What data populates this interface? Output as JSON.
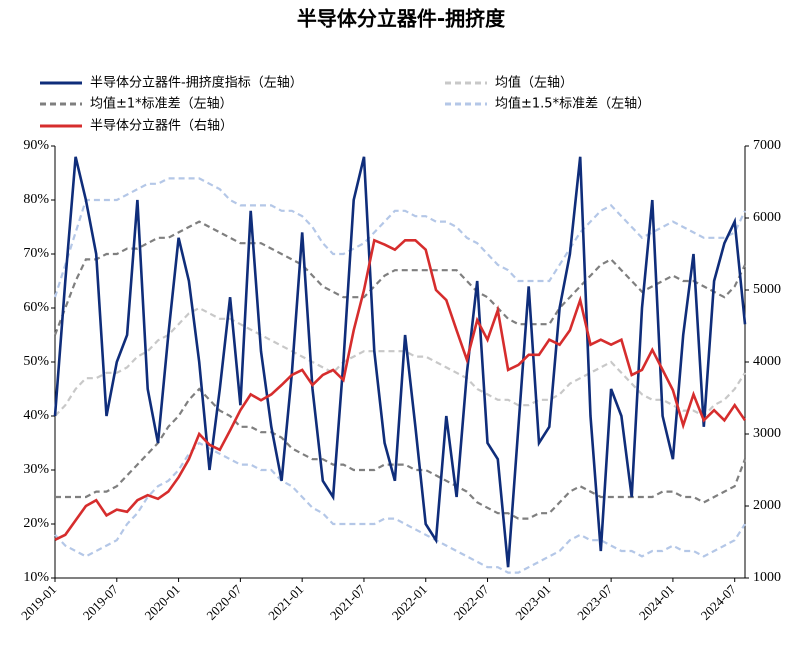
{
  "chart_data": {
    "type": "line",
    "title": "半导体分立器件-拥挤度",
    "x": [
      "2019-01",
      "2019-02",
      "2019-03",
      "2019-04",
      "2019-05",
      "2019-06",
      "2019-07",
      "2019-08",
      "2019-09",
      "2019-10",
      "2019-11",
      "2019-12",
      "2020-01",
      "2020-02",
      "2020-03",
      "2020-04",
      "2020-05",
      "2020-06",
      "2020-07",
      "2020-08",
      "2020-09",
      "2020-10",
      "2020-11",
      "2020-12",
      "2021-01",
      "2021-02",
      "2021-03",
      "2021-04",
      "2021-05",
      "2021-06",
      "2021-07",
      "2021-08",
      "2021-09",
      "2021-10",
      "2021-11",
      "2021-12",
      "2022-01",
      "2022-02",
      "2022-03",
      "2022-04",
      "2022-05",
      "2022-06",
      "2022-07",
      "2022-08",
      "2022-09",
      "2022-10",
      "2022-11",
      "2022-12",
      "2023-01",
      "2023-02",
      "2023-03",
      "2023-04",
      "2023-05",
      "2023-06",
      "2023-07",
      "2023-08",
      "2023-09",
      "2023-10",
      "2023-11",
      "2023-12",
      "2024-01",
      "2024-02",
      "2024-03",
      "2024-04",
      "2024-05",
      "2024-06",
      "2024-07",
      "2024-08"
    ],
    "series": [
      {
        "name": "半导体分立器件-拥挤度指标（左轴）",
        "color": "#0f2d7a",
        "dash": false,
        "values": [
          40,
          65,
          88,
          80,
          70,
          40,
          50,
          55,
          80,
          45,
          35,
          55,
          73,
          65,
          50,
          30,
          45,
          62,
          42,
          78,
          52,
          38,
          28,
          48,
          74,
          45,
          28,
          25,
          50,
          80,
          88,
          52,
          35,
          28,
          55,
          38,
          20,
          17,
          40,
          25,
          48,
          65,
          35,
          32,
          12,
          38,
          64,
          35,
          38,
          60,
          70,
          88,
          40,
          15,
          45,
          40,
          25,
          60,
          80,
          40,
          32,
          55,
          70,
          38,
          65,
          72,
          76,
          57
        ]
      },
      {
        "name": "均值（左轴）",
        "color": "#c8c8c8",
        "dash": true,
        "values": [
          40,
          42,
          45,
          47,
          47,
          48,
          48,
          49,
          51,
          52,
          54,
          55,
          57,
          59,
          60,
          59,
          58,
          58,
          57,
          56,
          55,
          54,
          53,
          52,
          51,
          50,
          49,
          48,
          50,
          51,
          52,
          52,
          52,
          52,
          52,
          51,
          51,
          50,
          49,
          48,
          47,
          45,
          44,
          43,
          43,
          42,
          42,
          43,
          43,
          44,
          46,
          47,
          48,
          49,
          50,
          48,
          46,
          44,
          43,
          43,
          42,
          41,
          41,
          40,
          42,
          43,
          45,
          48
        ]
      },
      {
        "name": "均值±1*标准差（左轴）",
        "color": "#7f7f7f",
        "dash": true,
        "upper": [
          55,
          60,
          65,
          69,
          69,
          70,
          70,
          71,
          71,
          72,
          73,
          73,
          74,
          75,
          76,
          75,
          74,
          73,
          72,
          72,
          72,
          71,
          70,
          69,
          68,
          66,
          64,
          63,
          62,
          62,
          62,
          64,
          66,
          67,
          67,
          67,
          67,
          67,
          67,
          67,
          65,
          63,
          62,
          60,
          58,
          57,
          57,
          57,
          57,
          60,
          62,
          64,
          66,
          68,
          69,
          67,
          65,
          63,
          64,
          65,
          66,
          65,
          65,
          64,
          63,
          62,
          64,
          68
        ],
        "lower": [
          25,
          25,
          25,
          25,
          26,
          26,
          27,
          29,
          31,
          33,
          35,
          38,
          40,
          43,
          45,
          43,
          41,
          40,
          38,
          38,
          37,
          37,
          36,
          34,
          33,
          32,
          32,
          31,
          31,
          30,
          30,
          30,
          31,
          31,
          31,
          30,
          30,
          29,
          28,
          27,
          26,
          24,
          23,
          22,
          22,
          21,
          21,
          22,
          22,
          24,
          26,
          27,
          26,
          25,
          25,
          25,
          25,
          25,
          25,
          26,
          26,
          25,
          25,
          24,
          25,
          26,
          27,
          32
        ]
      },
      {
        "name": "均值±1.5*标准差（左轴）",
        "color": "#b4c7e7",
        "dash": true,
        "upper": [
          62,
          68,
          74,
          80,
          80,
          80,
          80,
          81,
          82,
          83,
          83,
          84,
          84,
          84,
          84,
          83,
          82,
          80,
          79,
          79,
          79,
          79,
          78,
          78,
          77,
          75,
          72,
          70,
          70,
          71,
          72,
          74,
          76,
          78,
          78,
          77,
          77,
          76,
          76,
          75,
          73,
          72,
          70,
          68,
          67,
          65,
          65,
          65,
          65,
          68,
          71,
          74,
          76,
          78,
          79,
          77,
          75,
          73,
          74,
          75,
          76,
          75,
          74,
          73,
          73,
          73,
          74,
          78
        ],
        "lower": [
          18,
          16,
          15,
          14,
          15,
          16,
          17,
          20,
          22,
          25,
          27,
          28,
          30,
          33,
          35,
          34,
          33,
          32,
          31,
          31,
          30,
          30,
          28,
          27,
          25,
          23,
          22,
          20,
          20,
          20,
          20,
          20,
          21,
          21,
          20,
          19,
          18,
          17,
          16,
          15,
          14,
          13,
          12,
          12,
          11,
          11,
          12,
          13,
          14,
          15,
          17,
          18,
          17,
          17,
          16,
          15,
          15,
          14,
          15,
          15,
          16,
          15,
          15,
          14,
          15,
          16,
          17,
          20
        ]
      },
      {
        "name": "半导体分立器件（右轴）",
        "color": "#d62d2d",
        "dash": false,
        "axis": "y2",
        "values": [
          1530,
          1600,
          1800,
          2000,
          2080,
          1870,
          1950,
          1920,
          2080,
          2150,
          2100,
          2200,
          2400,
          2650,
          3000,
          2850,
          2780,
          3050,
          3330,
          3550,
          3470,
          3550,
          3680,
          3820,
          3890,
          3680,
          3820,
          3890,
          3750,
          4440,
          5000,
          5690,
          5630,
          5560,
          5690,
          5690,
          5560,
          5000,
          4860,
          4440,
          4030,
          4580,
          4310,
          4720,
          3890,
          3960,
          4100,
          4100,
          4310,
          4240,
          4440,
          4860,
          4240,
          4310,
          4240,
          4310,
          3820,
          3890,
          4170,
          3890,
          3610,
          3120,
          3550,
          3190,
          3330,
          3190,
          3400,
          3190
        ]
      }
    ],
    "ylim": [
      10,
      90
    ],
    "yticks": [
      {
        "value": 10,
        "label": "10%"
      },
      {
        "value": 20,
        "label": "20%"
      },
      {
        "value": 30,
        "label": "30%"
      },
      {
        "value": 40,
        "label": "40%"
      },
      {
        "value": 50,
        "label": "50%"
      },
      {
        "value": 60,
        "label": "60%"
      },
      {
        "value": 70,
        "label": "70%"
      },
      {
        "value": 80,
        "label": "80%"
      },
      {
        "value": 90,
        "label": "90%"
      }
    ],
    "y2lim": [
      1000,
      7000
    ],
    "y2ticks": [
      1000,
      2000,
      3000,
      4000,
      5000,
      6000,
      7000
    ],
    "grid": false
  }
}
